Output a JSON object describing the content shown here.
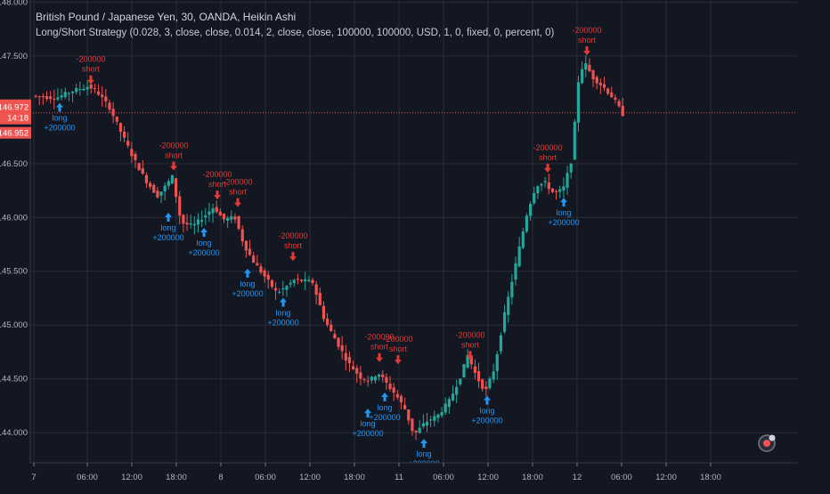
{
  "header": {
    "title": "British Pound / Japanese Yen, 30, OANDA, Heikin Ashi",
    "strategy": "Long/Short Strategy (0.028, 3, close, close, 0.014, 2, close, close, 100000, 100000, USD, 1, 0, fixed, 0, percent, 0)"
  },
  "colors": {
    "background": "#131722",
    "up_candle": "#26a69a",
    "down_candle": "#ef5350",
    "long_marker": "#2196f3",
    "short_marker": "#e53935",
    "price_tag": "#ef5350",
    "grid": "#2a2e39"
  },
  "badge": {
    "icon": "settings-gear-icon"
  },
  "chart_data": {
    "type": "candlestick",
    "ylim": [
      143.72,
      148.02
    ],
    "xlim": [
      0,
      1
    ],
    "y_ticks": [
      "148.000",
      "147.500",
      "146.500",
      "146.000",
      "145.500",
      "145.000",
      "144.500",
      "144.000"
    ],
    "y_tick_values": [
      148.0,
      147.5,
      146.5,
      146.0,
      145.5,
      145.0,
      144.5,
      144.0
    ],
    "x_ticks": [
      {
        "label": "7",
        "t": 0.0
      },
      {
        "label": "06:00",
        "t": 0.0896
      },
      {
        "label": "12:00",
        "t": 0.1642
      },
      {
        "label": "18:00",
        "t": 0.2388
      },
      {
        "label": "8",
        "t": 0.3134
      },
      {
        "label": "06:00",
        "t": 0.3881
      },
      {
        "label": "12:00",
        "t": 0.4627
      },
      {
        "label": "18:00",
        "t": 0.5373
      },
      {
        "label": "11",
        "t": 0.6119
      },
      {
        "label": "06:00",
        "t": 0.6866
      },
      {
        "label": "12:00",
        "t": 0.7612
      },
      {
        "label": "18:00",
        "t": 0.8358
      },
      {
        "label": "12",
        "t": 0.9104
      },
      {
        "label": "06:00",
        "t": 0.985
      },
      {
        "label": "12:00",
        "t": 1.0597
      },
      {
        "label": "18:00",
        "t": 1.1343
      }
    ],
    "price_line": {
      "value": 146.972,
      "label": "146.972",
      "countdown": "14:18"
    },
    "second_tag": {
      "label": "146.952"
    },
    "signal_labels": {
      "long": "long",
      "short": "short",
      "long_qty": "+200000",
      "short_qty": "-200000"
    },
    "signals": [
      {
        "side": "long",
        "t": 0.0433,
        "price": 147.08
      },
      {
        "side": "short",
        "t": 0.0955,
        "price": 147.22
      },
      {
        "side": "short",
        "t": 0.2343,
        "price": 146.42
      },
      {
        "side": "long",
        "t": 0.2254,
        "price": 146.06
      },
      {
        "side": "long",
        "t": 0.2851,
        "price": 145.92
      },
      {
        "side": "short",
        "t": 0.3075,
        "price": 146.15
      },
      {
        "side": "short",
        "t": 0.3418,
        "price": 146.08
      },
      {
        "side": "long",
        "t": 0.3582,
        "price": 145.54
      },
      {
        "side": "long",
        "t": 0.4179,
        "price": 145.27
      },
      {
        "side": "short",
        "t": 0.4343,
        "price": 145.58
      },
      {
        "side": "long",
        "t": 0.5597,
        "price": 144.24
      },
      {
        "side": "short",
        "t": 0.5791,
        "price": 144.64
      },
      {
        "side": "long",
        "t": 0.5881,
        "price": 144.39
      },
      {
        "side": "short",
        "t": 0.6104,
        "price": 144.62
      },
      {
        "side": "long",
        "t": 0.6537,
        "price": 143.96
      },
      {
        "side": "short",
        "t": 0.7313,
        "price": 144.66
      },
      {
        "side": "long",
        "t": 0.7597,
        "price": 144.36
      },
      {
        "side": "short",
        "t": 0.8612,
        "price": 146.4
      },
      {
        "side": "long",
        "t": 0.8881,
        "price": 146.2
      },
      {
        "side": "short",
        "t": 0.9269,
        "price": 147.49
      }
    ],
    "path_anchors": [
      [
        0.0,
        147.13
      ],
      [
        0.04,
        147.11
      ],
      [
        0.07,
        147.18
      ],
      [
        0.095,
        147.22
      ],
      [
        0.11,
        147.16
      ],
      [
        0.13,
        147.02
      ],
      [
        0.15,
        146.78
      ],
      [
        0.17,
        146.55
      ],
      [
        0.19,
        146.35
      ],
      [
        0.21,
        146.2
      ],
      [
        0.225,
        146.3
      ],
      [
        0.235,
        146.38
      ],
      [
        0.25,
        145.95
      ],
      [
        0.27,
        145.92
      ],
      [
        0.29,
        146.02
      ],
      [
        0.305,
        146.1
      ],
      [
        0.32,
        145.98
      ],
      [
        0.34,
        146.0
      ],
      [
        0.355,
        145.75
      ],
      [
        0.37,
        145.6
      ],
      [
        0.39,
        145.45
      ],
      [
        0.41,
        145.3
      ],
      [
        0.425,
        145.35
      ],
      [
        0.44,
        145.42
      ],
      [
        0.47,
        145.4
      ],
      [
        0.49,
        145.05
      ],
      [
        0.51,
        144.85
      ],
      [
        0.53,
        144.65
      ],
      [
        0.55,
        144.52
      ],
      [
        0.565,
        144.48
      ],
      [
        0.58,
        144.56
      ],
      [
        0.595,
        144.45
      ],
      [
        0.61,
        144.35
      ],
      [
        0.625,
        144.22
      ],
      [
        0.64,
        143.98
      ],
      [
        0.66,
        144.1
      ],
      [
        0.68,
        144.16
      ],
      [
        0.7,
        144.3
      ],
      [
        0.72,
        144.55
      ],
      [
        0.73,
        144.72
      ],
      [
        0.745,
        144.52
      ],
      [
        0.76,
        144.38
      ],
      [
        0.775,
        144.6
      ],
      [
        0.79,
        145.05
      ],
      [
        0.81,
        145.55
      ],
      [
        0.83,
        146.05
      ],
      [
        0.845,
        146.3
      ],
      [
        0.86,
        146.32
      ],
      [
        0.875,
        146.22
      ],
      [
        0.89,
        146.26
      ],
      [
        0.905,
        146.55
      ],
      [
        0.915,
        147.25
      ],
      [
        0.925,
        147.45
      ],
      [
        0.94,
        147.3
      ],
      [
        0.96,
        147.2
      ],
      [
        0.975,
        147.1
      ],
      [
        0.99,
        146.96
      ]
    ]
  }
}
